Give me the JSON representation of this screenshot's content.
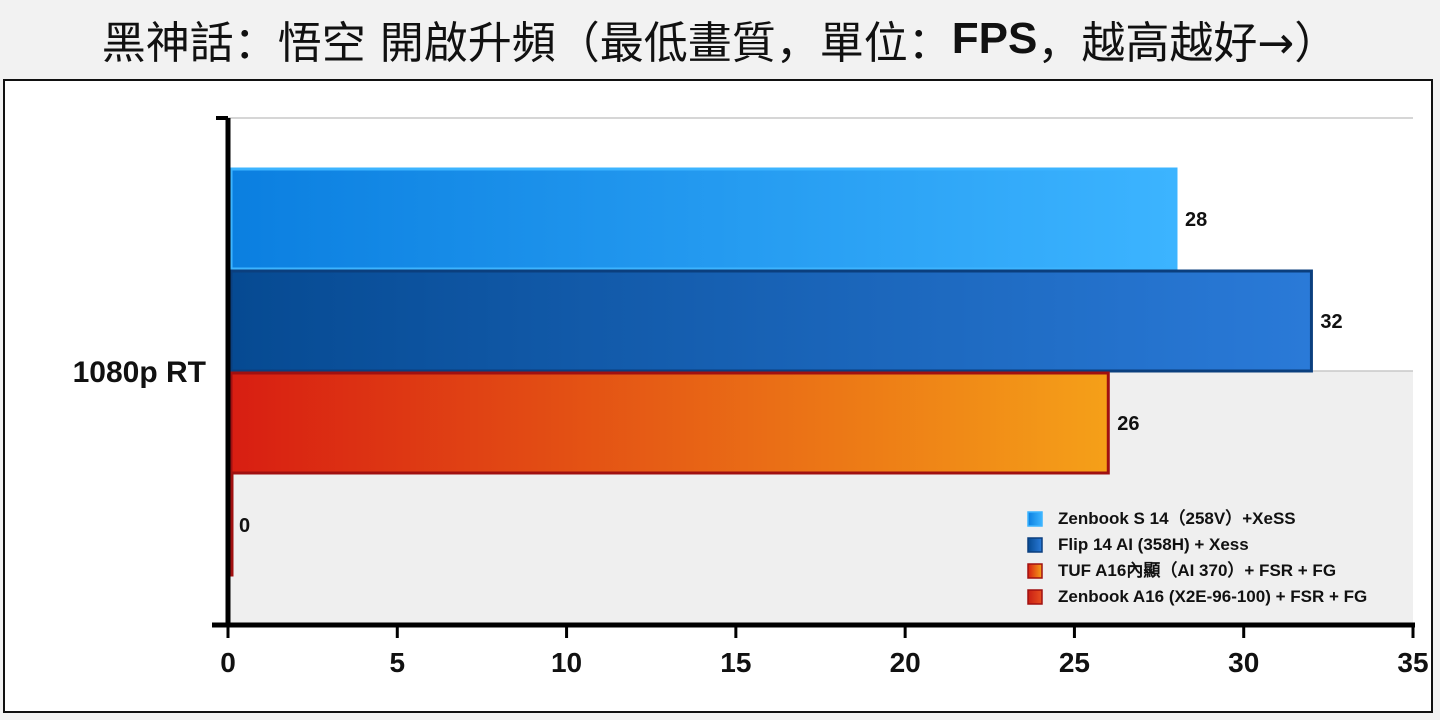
{
  "title": {
    "text": "黑神話：悟空 開啟升頻（最低畫質，單位：",
    "unit": "FPS",
    "tail": "，越高越好→）"
  },
  "chart_data": {
    "type": "bar",
    "orientation": "horizontal",
    "categories": [
      "1080p RT"
    ],
    "series": [
      {
        "name": "Zenbook S 14（258V）+XeSS",
        "values": [
          28
        ],
        "color": "#1a9cf0"
      },
      {
        "name": "Flip 14 AI (358H) + Xess",
        "values": [
          32
        ],
        "color": "#0d5bb5"
      },
      {
        "name": "TUF A16內顯（AI 370）+ FSR + FG",
        "values": [
          26
        ],
        "color": "#f07a10"
      },
      {
        "name": "Zenbook A16 (X2E-96-100) + FSR + FG",
        "values": [
          0
        ],
        "color": "#d8281a"
      }
    ],
    "xlim": [
      0,
      35
    ],
    "xticks": [
      0,
      5,
      10,
      15,
      20,
      25,
      30,
      35
    ],
    "grid": true,
    "legend_position": "bottom-right"
  }
}
